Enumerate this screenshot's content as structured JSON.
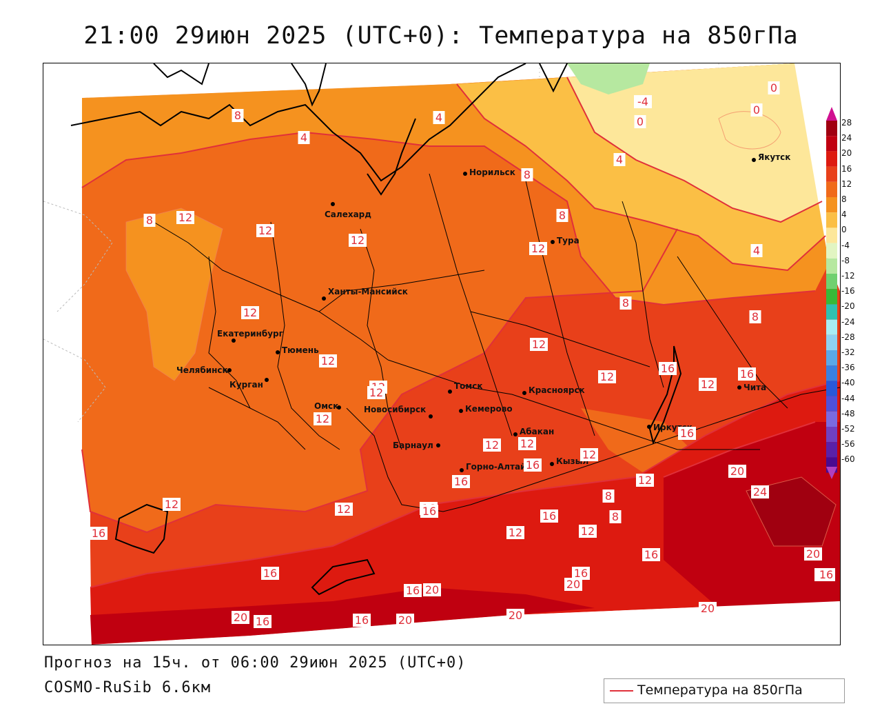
{
  "title": "21:00 29июн 2025 (UTC+0): Температура на 850гПа",
  "footer": {
    "forecast": "Прогноз на 15ч. от 06:00 29июн 2025 (UTC+0)",
    "model": "COSMO-RuSib 6.6км"
  },
  "legend": {
    "label": "Температура на 850гПа",
    "line_color": "#e0303a"
  },
  "colorbar": {
    "labels": [
      "28",
      "24",
      "20",
      "16",
      "12",
      "8",
      "4",
      "0",
      "-4",
      "-8",
      "-12",
      "-16",
      "-20",
      "-24",
      "-28",
      "-32",
      "-36",
      "-40",
      "-44",
      "-48",
      "-52",
      "-56",
      "-60"
    ],
    "colors": [
      "#a00010",
      "#c00010",
      "#dd1a10",
      "#e8401a",
      "#f06a1a",
      "#f5921f",
      "#fbbf45",
      "#fde79a",
      "#e2f5c2",
      "#b6e8a0",
      "#70d070",
      "#38b838",
      "#30c0b0",
      "#a8ecf4",
      "#8fd0f0",
      "#5aa8e8",
      "#3a80e0",
      "#2a58d8",
      "#5050d8",
      "#7a6ae0",
      "#7040c0",
      "#5a20a8",
      "#4a0a90"
    ],
    "top_color": "#d01090",
    "bottom_color": "#b040c0"
  },
  "cities": [
    {
      "name": "Норильск"
    },
    {
      "name": "Салехард"
    },
    {
      "name": "Тура"
    },
    {
      "name": "Якутск"
    },
    {
      "name": "Ханты-Мансийск"
    },
    {
      "name": "Екатеринбург"
    },
    {
      "name": "Тюмень"
    },
    {
      "name": "Челябинск"
    },
    {
      "name": "Курган"
    },
    {
      "name": "Омск"
    },
    {
      "name": "Новосибирск"
    },
    {
      "name": "Томск"
    },
    {
      "name": "Кемерово"
    },
    {
      "name": "Красноярск"
    },
    {
      "name": "Барнаул"
    },
    {
      "name": "Абакан"
    },
    {
      "name": "Горно-Алтайск"
    },
    {
      "name": "Кызыл"
    },
    {
      "name": "Иркутск"
    },
    {
      "name": "Чита"
    }
  ],
  "isotherm_labels": [
    "8",
    "4",
    "4",
    "8",
    "12",
    "12",
    "12",
    "8",
    "8",
    "12",
    "-4",
    "0",
    "0",
    "0",
    "4",
    "4",
    "8",
    "8",
    "12",
    "12",
    "12",
    "12",
    "12",
    "16",
    "16",
    "12",
    "16",
    "16",
    "16",
    "12",
    "16",
    "20",
    "24",
    "12",
    "12",
    "16",
    "16",
    "16",
    "12",
    "12",
    "12",
    "16",
    "20",
    "20",
    "16",
    "16",
    "20",
    "20",
    "20",
    "16",
    "20",
    "16",
    "16",
    "16",
    "20",
    "12",
    "12",
    "12",
    "16",
    "12",
    "8",
    "8"
  ]
}
